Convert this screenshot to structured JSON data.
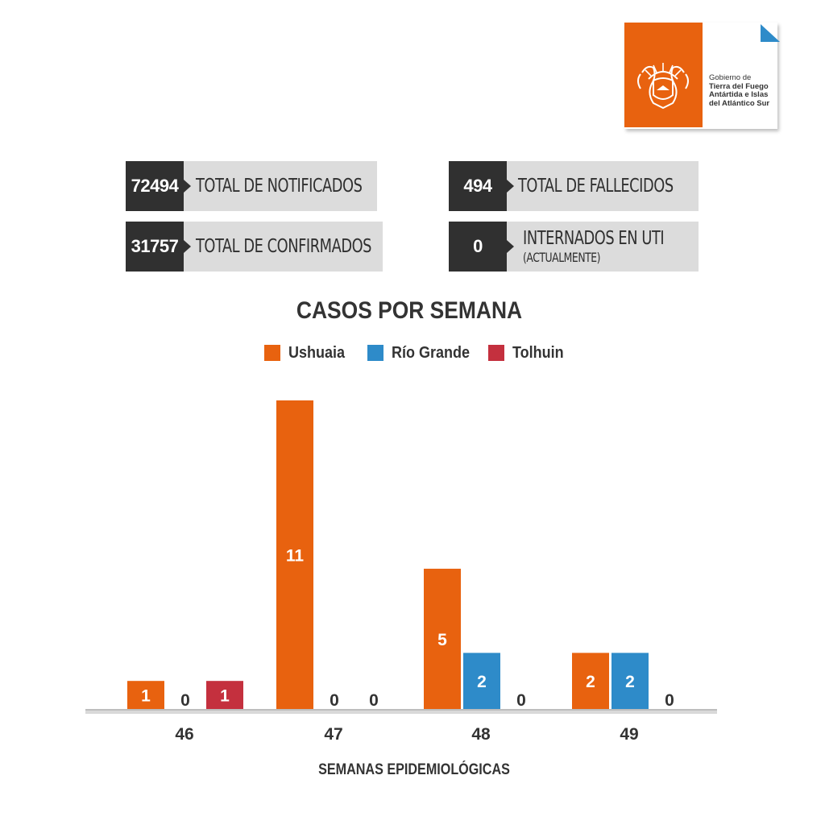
{
  "logo": {
    "line1": "Gobierno de",
    "line2": "Tierra del Fuego",
    "line3": "Antártida e Islas",
    "line4": "del Atlántico Sur",
    "brand_color": "#E8620F",
    "accent_color": "#2E8BC9"
  },
  "stats": {
    "notificados": {
      "value": "72494",
      "label": "TOTAL DE NOTIFICADOS"
    },
    "confirmados": {
      "value": "31757",
      "label": "TOTAL DE CONFIRMADOS"
    },
    "fallecidos": {
      "value": "494",
      "label": "TOTAL DE FALLECIDOS"
    },
    "uti": {
      "value": "0",
      "label": "INTERNADOS EN UTI",
      "sublabel": "(ACTUALMENTE)"
    }
  },
  "chart_data": {
    "type": "bar",
    "title": "CASOS POR SEMANA",
    "xlabel": "SEMANAS EPIDEMIOLÓGICAS",
    "ylabel": "",
    "categories": [
      "46",
      "47",
      "48",
      "49"
    ],
    "series": [
      {
        "name": "Ushuaia",
        "color": "#E8620F",
        "values": [
          1,
          11,
          5,
          2
        ]
      },
      {
        "name": "Río Grande",
        "color": "#2E8BC9",
        "values": [
          0,
          0,
          2,
          2
        ]
      },
      {
        "name": "Tolhuin",
        "color": "#C4303E",
        "values": [
          1,
          0,
          0,
          0
        ]
      }
    ],
    "ylim": [
      0,
      11
    ],
    "grid": false,
    "legend_position": "top-center"
  }
}
